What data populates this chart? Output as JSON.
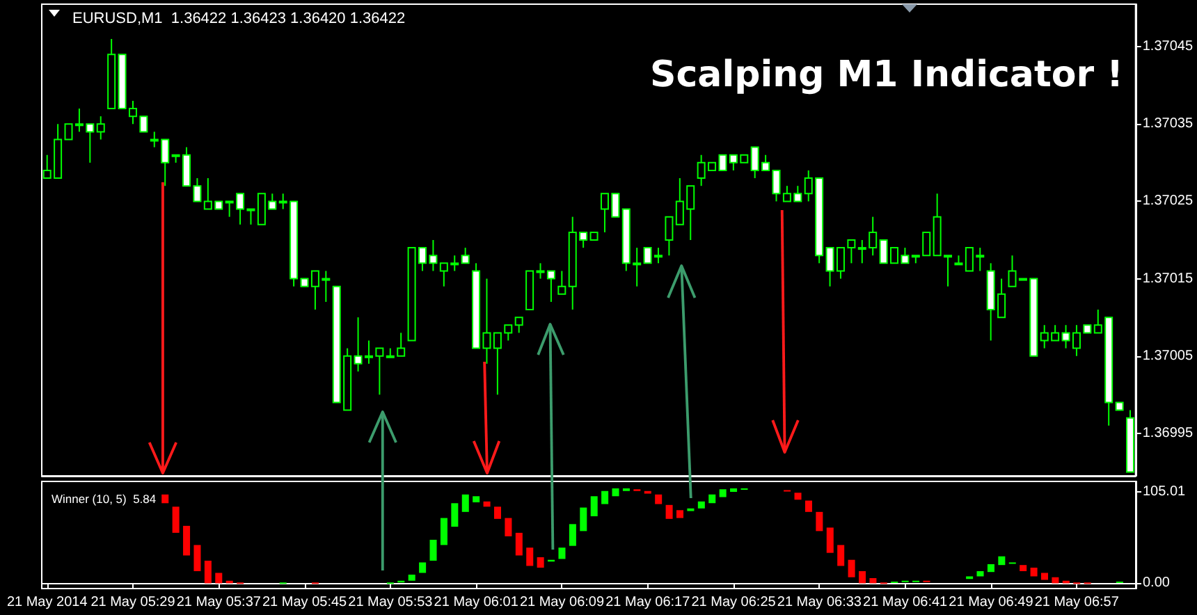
{
  "chart_data": [
    {
      "type": "candlestick",
      "title": "Scalping M1 Indicator !",
      "annotations": [
        "EURUSD,M1  1.36422 1.36423 1.36420 1.36422"
      ],
      "color": "#00ff00",
      "tick_labels": "y",
      "categories": [
        null,
        null,
        null,
        null,
        null,
        null,
        null,
        null,
        null,
        null,
        null,
        null,
        null,
        null,
        null,
        null,
        null,
        null,
        null,
        null,
        null,
        null,
        null,
        null,
        null,
        null,
        null,
        null,
        null,
        null,
        null,
        null,
        null,
        null,
        null,
        null,
        null,
        null,
        null,
        null,
        null,
        null,
        null,
        null,
        null,
        null,
        null,
        null,
        null,
        null,
        null,
        null,
        null,
        null,
        null,
        null,
        null,
        null,
        null,
        null,
        null,
        null,
        null,
        null,
        null,
        null,
        null,
        null,
        null,
        null,
        null,
        null,
        null,
        null,
        null,
        null,
        null,
        null,
        null,
        null,
        null,
        null,
        null,
        null,
        null,
        null,
        null,
        null,
        null,
        null,
        null,
        null,
        null,
        null,
        null,
        null,
        null,
        null,
        null,
        null,
        null,
        null
      ],
      "ohlc": [
        [
          1.37028,
          1.37031,
          1.37028,
          1.37029
        ],
        [
          1.37028,
          1.37035,
          1.37028,
          1.37033
        ],
        [
          1.37033,
          1.37035,
          1.37033,
          1.37035
        ],
        [
          1.37035,
          1.37037,
          1.37034,
          1.37035
        ],
        [
          1.37035,
          1.37035,
          1.3703,
          1.37034
        ],
        [
          1.37034,
          1.37036,
          1.37033,
          1.37035
        ],
        [
          1.37037,
          1.37046,
          1.37037,
          1.37044
        ],
        [
          1.37044,
          1.37044,
          1.37037,
          1.37037
        ],
        [
          1.37036,
          1.37038,
          1.37035,
          1.37037
        ],
        [
          1.37036,
          1.37036,
          1.37034,
          1.37034
        ],
        [
          1.37033,
          1.37034,
          1.37032,
          1.37033
        ],
        [
          1.37033,
          1.37033,
          1.37027,
          1.3703
        ],
        [
          1.37031,
          1.37031,
          1.3703,
          1.37031
        ],
        [
          1.37031,
          1.37032,
          1.37027,
          1.37027
        ],
        [
          1.37027,
          1.37028,
          1.37025,
          1.37025
        ],
        [
          1.37024,
          1.37028,
          1.37024,
          1.37025
        ],
        [
          1.37025,
          1.37025,
          1.37024,
          1.37024
        ],
        [
          1.37025,
          1.37025,
          1.37023,
          1.37025
        ],
        [
          1.37026,
          1.37026,
          1.37022,
          1.37024
        ],
        [
          1.37024,
          1.37024,
          1.37022,
          1.37024
        ],
        [
          1.37022,
          1.37026,
          1.37022,
          1.37026
        ],
        [
          1.37025,
          1.37026,
          1.37024,
          1.37024
        ],
        [
          1.37025,
          1.37026,
          1.37024,
          1.37025
        ],
        [
          1.37025,
          1.37025,
          1.37014,
          1.37015
        ],
        [
          1.37015,
          1.37015,
          1.37014,
          1.37014
        ],
        [
          1.37014,
          1.37016,
          1.37011,
          1.37016
        ],
        [
          1.37015,
          1.37016,
          1.37012,
          1.37015
        ],
        [
          1.37014,
          1.37014,
          1.36999,
          1.36999
        ],
        [
          1.36998,
          1.37006,
          1.36998,
          1.37005
        ],
        [
          1.37005,
          1.3701,
          1.37003,
          1.37004
        ],
        [
          1.37005,
          1.37007,
          1.37004,
          1.37005
        ],
        [
          1.37005,
          1.37006,
          1.37,
          1.37006
        ],
        [
          1.37005,
          1.37006,
          1.37005,
          1.37005
        ],
        [
          1.37005,
          1.37008,
          1.37005,
          1.37006
        ],
        [
          1.37007,
          1.37019,
          1.37007,
          1.37019
        ],
        [
          1.37019,
          1.37019,
          1.37016,
          1.37017
        ],
        [
          1.37018,
          1.3702,
          1.37016,
          1.37017
        ],
        [
          1.37016,
          1.37017,
          1.37014,
          1.37017
        ],
        [
          1.37017,
          1.37018,
          1.37016,
          1.37017
        ],
        [
          1.37018,
          1.37019,
          1.37017,
          1.37017
        ],
        [
          1.37016,
          1.37017,
          1.37006,
          1.37006
        ],
        [
          1.37006,
          1.37015,
          1.37004,
          1.37008
        ],
        [
          1.37006,
          1.37008,
          1.37,
          1.37008
        ],
        [
          1.37008,
          1.37009,
          1.37007,
          1.37009
        ],
        [
          1.37009,
          1.3701,
          1.37008,
          1.3701
        ],
        [
          1.37011,
          1.37016,
          1.37011,
          1.37016
        ],
        [
          1.37016,
          1.37017,
          1.37015,
          1.37016
        ],
        [
          1.37016,
          1.37016,
          1.37012,
          1.37015
        ],
        [
          1.37013,
          1.37016,
          1.37013,
          1.37014
        ],
        [
          1.37014,
          1.37023,
          1.37011,
          1.37021
        ],
        [
          1.37021,
          1.37021,
          1.37019,
          1.3702
        ],
        [
          1.3702,
          1.37021,
          1.3702,
          1.37021
        ],
        [
          1.37024,
          1.37026,
          1.37021,
          1.37026
        ],
        [
          1.37026,
          1.37026,
          1.37023,
          1.37023
        ],
        [
          1.37024,
          1.37024,
          1.37016,
          1.37017
        ],
        [
          1.37017,
          1.37019,
          1.37014,
          1.37017
        ],
        [
          1.37019,
          1.37019,
          1.37017,
          1.37017
        ],
        [
          1.37018,
          1.37019,
          1.37017,
          1.37018
        ],
        [
          1.3702,
          1.37023,
          1.37018,
          1.37023
        ],
        [
          1.37022,
          1.37028,
          1.37022,
          1.37025
        ],
        [
          1.37024,
          1.37027,
          1.3702,
          1.37027
        ],
        [
          1.37028,
          1.37031,
          1.37027,
          1.3703
        ],
        [
          1.37029,
          1.3703,
          1.37029,
          1.3703
        ],
        [
          1.37031,
          1.37031,
          1.37029,
          1.37029
        ],
        [
          1.37031,
          1.37031,
          1.37029,
          1.3703
        ],
        [
          1.3703,
          1.37031,
          1.3703,
          1.37031
        ],
        [
          1.37032,
          1.37032,
          1.37028,
          1.37029
        ],
        [
          1.3703,
          1.37031,
          1.37029,
          1.37029
        ],
        [
          1.37029,
          1.37029,
          1.37025,
          1.37026
        ],
        [
          1.37025,
          1.37027,
          1.37025,
          1.37026
        ],
        [
          1.37026,
          1.37027,
          1.37025,
          1.37025
        ],
        [
          1.37026,
          1.37029,
          1.37025,
          1.37028
        ],
        [
          1.37028,
          1.37028,
          1.37017,
          1.37018
        ],
        [
          1.37019,
          1.37019,
          1.37014,
          1.37016
        ],
        [
          1.37016,
          1.37019,
          1.37015,
          1.37019
        ],
        [
          1.37019,
          1.3702,
          1.37017,
          1.3702
        ],
        [
          1.37019,
          1.3702,
          1.37017,
          1.37019
        ],
        [
          1.37019,
          1.37023,
          1.37018,
          1.37021
        ],
        [
          1.3702,
          1.3702,
          1.37017,
          1.37017
        ],
        [
          1.37017,
          1.37019,
          1.37017,
          1.37019
        ],
        [
          1.37018,
          1.37019,
          1.37017,
          1.37017
        ],
        [
          1.37018,
          1.37018,
          1.37017,
          1.37018
        ],
        [
          1.37018,
          1.37021,
          1.37018,
          1.37021
        ],
        [
          1.37018,
          1.37026,
          1.37018,
          1.37023
        ],
        [
          1.37018,
          1.37018,
          1.37014,
          1.37018
        ],
        [
          1.37017,
          1.37018,
          1.37017,
          1.37017
        ],
        [
          1.37016,
          1.37019,
          1.37016,
          1.37019
        ],
        [
          1.37018,
          1.37019,
          1.37016,
          1.37018
        ],
        [
          1.37016,
          1.37017,
          1.37007,
          1.37011
        ],
        [
          1.3701,
          1.37015,
          1.3701,
          1.37013
        ],
        [
          1.37014,
          1.37018,
          1.37014,
          1.37016
        ],
        [
          1.37015,
          1.37015,
          1.37015,
          1.37015
        ],
        [
          1.37015,
          1.37015,
          1.37005,
          1.37005
        ],
        [
          1.37007,
          1.37009,
          1.37006,
          1.37008
        ],
        [
          1.37007,
          1.37009,
          1.37007,
          1.37008
        ],
        [
          1.37008,
          1.37009,
          1.37006,
          1.37007
        ],
        [
          1.37006,
          1.37009,
          1.37005,
          1.37008
        ],
        [
          1.37009,
          1.37009,
          1.37008,
          1.37008
        ],
        [
          1.37008,
          1.37011,
          1.37008,
          1.37009
        ],
        [
          1.3701,
          1.3701,
          1.36996,
          1.36999
        ],
        [
          1.36999,
          1.36999,
          1.36998,
          1.36998
        ],
        [
          1.36997,
          1.36998,
          1.3699,
          1.3699
        ]
      ],
      "colors": [
        "#000000",
        "#000000",
        "#000000",
        "#000000",
        "#ffffff",
        "#000000",
        "#000000",
        "#ffffff",
        "#000000",
        "#ffffff",
        "#000000",
        "#ffffff",
        "#000000",
        "#ffffff",
        "#ffffff",
        "#000000",
        "#ffffff",
        "#000000",
        "#ffffff",
        "#000000",
        "#000000",
        "#ffffff",
        "#000000",
        "#ffffff",
        "#ffffff",
        "#000000",
        "#000000",
        "#ffffff",
        "#000000",
        "#ffffff",
        "#000000",
        "#000000",
        "#000000",
        "#000000",
        "#000000",
        "#ffffff",
        "#ffffff",
        "#000000",
        "#000000",
        "#ffffff",
        "#ffffff",
        "#000000",
        "#000000",
        "#000000",
        "#000000",
        "#000000",
        "#000000",
        "#ffffff",
        "#000000",
        "#000000",
        "#ffffff",
        "#000000",
        "#000000",
        "#ffffff",
        "#ffffff",
        "#000000",
        "#ffffff",
        "#000000",
        "#000000",
        "#000000",
        "#000000",
        "#000000",
        "#000000",
        "#ffffff",
        "#ffffff",
        "#000000",
        "#ffffff",
        "#ffffff",
        "#ffffff",
        "#000000",
        "#ffffff",
        "#000000",
        "#ffffff",
        "#ffffff",
        "#000000",
        "#000000",
        "#000000",
        "#000000",
        "#ffffff",
        "#000000",
        "#ffffff",
        "#000000",
        "#000000",
        "#000000",
        "#000000",
        "#ffffff",
        "#000000",
        "#000000",
        "#ffffff",
        "#000000",
        "#000000",
        "#000000",
        "#ffffff",
        "#000000",
        "#000000",
        "#ffffff",
        "#000000",
        "#ffffff",
        "#000000",
        "#ffffff",
        "#ffffff",
        "#ffffff"
      ],
      "ylim": [
        1.369895,
        1.370505
      ],
      "yticks": [
        1.36995,
        1.37005,
        1.37015,
        1.37025,
        1.37035,
        1.37045
      ]
    },
    {
      "type": "bar",
      "title": "Winner (10, 5)  5.84",
      "categories": [
        "21 May 2014",
        null,
        null,
        null,
        null,
        null,
        null,
        null,
        "21 May 05:29",
        null,
        null,
        null,
        null,
        null,
        null,
        null,
        "21 May 05:37",
        null,
        null,
        null,
        null,
        null,
        null,
        null,
        "21 May 05:45",
        null,
        null,
        null,
        null,
        null,
        null,
        null,
        "21 May 05:53",
        null,
        null,
        null,
        null,
        null,
        null,
        null,
        "21 May 06:01",
        null,
        null,
        null,
        null,
        null,
        null,
        null,
        "21 May 06:09",
        null,
        null,
        null,
        null,
        null,
        null,
        null,
        "21 May 06:17",
        null,
        null,
        null,
        null,
        null,
        null,
        null,
        "21 May 06:25",
        null,
        null,
        null,
        null,
        null,
        null,
        null,
        "21 May 06:33",
        null,
        null,
        null,
        null,
        null,
        null,
        null,
        "21 May 06:41",
        null,
        null,
        null,
        null,
        null,
        null,
        null,
        "21 May 06:49",
        null,
        null,
        null,
        null,
        null,
        null,
        null,
        "21 May 06:57",
        null,
        null,
        null,
        null,
        null
      ],
      "base": [
        null,
        null,
        null,
        null,
        null,
        null,
        null,
        null,
        null,
        null,
        null,
        92,
        58,
        32,
        14,
        0,
        0,
        0,
        0,
        null,
        null,
        null,
        0,
        null,
        null,
        0,
        null,
        null,
        null,
        null,
        null,
        null,
        0,
        1,
        3,
        12,
        26,
        44,
        65,
        82,
        93,
        88,
        74,
        54,
        32,
        20,
        18,
        25,
        28,
        43,
        60,
        77,
        91,
        100,
        106,
        106,
        103,
        91,
        74,
        75,
        83,
        86,
        92,
        99,
        105,
        108,
        null,
        null,
        null,
        106,
        96,
        82,
        60,
        35,
        20,
        7,
        0,
        0,
        0,
        1,
        2,
        2,
        2,
        null,
        null,
        null,
        5,
        8,
        13,
        21,
        23,
        14,
        8,
        4,
        0,
        0,
        0,
        0,
        null,
        null,
        1,
        null
      ],
      "values": [
        null,
        null,
        null,
        null,
        null,
        null,
        null,
        null,
        null,
        null,
        null,
        10,
        30,
        34,
        30,
        26,
        12,
        3,
        1,
        null,
        null,
        null,
        1,
        null,
        null,
        1,
        null,
        null,
        null,
        null,
        null,
        null,
        1,
        2,
        7,
        12,
        24,
        31,
        27,
        20,
        7,
        6,
        14,
        21,
        26,
        21,
        12,
        2,
        13,
        25,
        27,
        23,
        15,
        9,
        3,
        2,
        3,
        11,
        16,
        9,
        3,
        8,
        10,
        9,
        4,
        1,
        null,
        null,
        null,
        1,
        8,
        13,
        22,
        29,
        24,
        20,
        14,
        6,
        1,
        1,
        1,
        1,
        1,
        null,
        null,
        null,
        3,
        6,
        9,
        10,
        1,
        7,
        10,
        8,
        7,
        3,
        1,
        1,
        null,
        null,
        1,
        null
      ],
      "colors": [
        null,
        null,
        null,
        null,
        null,
        null,
        null,
        null,
        null,
        null,
        null,
        "#ff0000",
        "#ff0000",
        "#ff0000",
        "#ff0000",
        "#ff0000",
        "#ff0000",
        "#ff0000",
        "#ff0000",
        null,
        null,
        null,
        "#00ff00",
        null,
        null,
        "#ff0000",
        null,
        null,
        null,
        null,
        null,
        null,
        "#00ff00",
        "#00ff00",
        "#00ff00",
        "#00ff00",
        "#00ff00",
        "#00ff00",
        "#00ff00",
        "#00ff00",
        "#00ff00",
        "#ff0000",
        "#ff0000",
        "#ff0000",
        "#ff0000",
        "#ff0000",
        "#ff0000",
        "#00ff00",
        "#00ff00",
        "#00ff00",
        "#00ff00",
        "#00ff00",
        "#00ff00",
        "#00ff00",
        "#00ff00",
        "#ff0000",
        "#ff0000",
        "#ff0000",
        "#ff0000",
        "#ff0000",
        "#00ff00",
        "#00ff00",
        "#00ff00",
        "#00ff00",
        "#00ff00",
        "#00ff00",
        null,
        null,
        null,
        "#ff0000",
        "#ff0000",
        "#ff0000",
        "#ff0000",
        "#ff0000",
        "#ff0000",
        "#ff0000",
        "#ff0000",
        "#ff0000",
        "#ff0000",
        "#00ff00",
        "#00ff00",
        "#00ff00",
        "#ff0000",
        null,
        null,
        null,
        "#00ff00",
        "#00ff00",
        "#00ff00",
        "#00ff00",
        "#00ff00",
        "#ff0000",
        "#ff0000",
        "#ff0000",
        "#ff0000",
        "#ff0000",
        "#ff0000",
        "#ff0000",
        null,
        null,
        "#00ff00",
        null
      ],
      "ylim": [
        -6,
        117
      ],
      "yticks": [
        105.01,
        {
          "value": 0,
          "label": "0.00"
        }
      ]
    }
  ]
}
